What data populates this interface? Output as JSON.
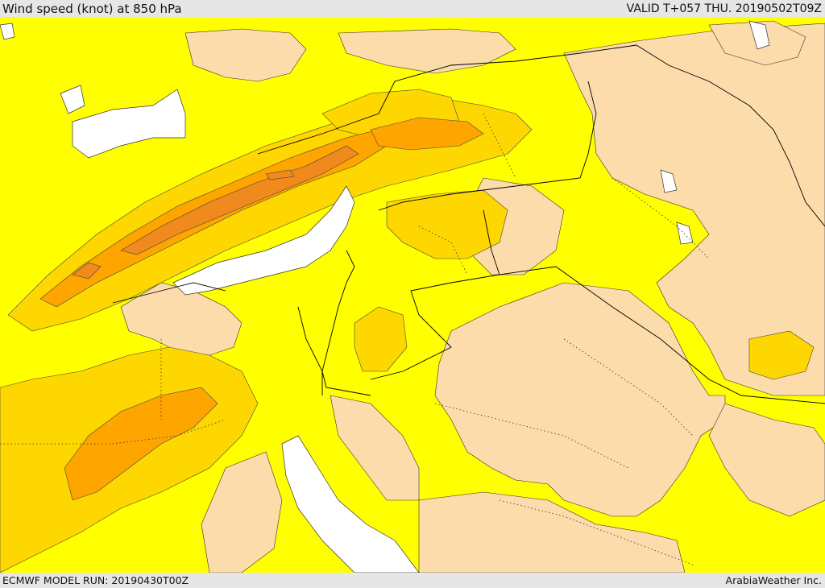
{
  "header": {
    "title": "Wind speed (knot) at 850 hPa",
    "valid": "VALID T+057 THU. 20190502T09Z"
  },
  "footer": {
    "model_run": "ECMWF MODEL RUN: 20190430T00Z",
    "credit": "ArabiaWeather Inc."
  },
  "colors": {
    "land_calm": "#fcdcaa",
    "wind_low": "#ffff00",
    "wind_mid": "#ffd700",
    "wind_high": "#ffa500",
    "wind_top": "#f08a1c",
    "sea_calm": "#ffffff",
    "border_line": "#000000",
    "contour_line": "#444444"
  }
}
